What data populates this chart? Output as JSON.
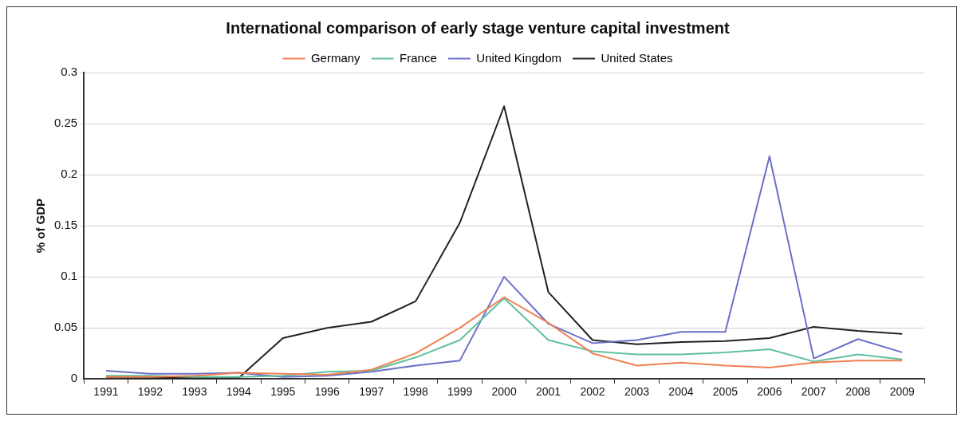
{
  "chart_data": {
    "type": "line",
    "title": "International comparison of early stage venture capital investment",
    "ylabel": "% of GDP",
    "categories": [
      "1991",
      "1992",
      "1993",
      "1994",
      "1995",
      "1996",
      "1997",
      "1998",
      "1999",
      "2000",
      "2001",
      "2002",
      "2003",
      "2004",
      "2005",
      "2006",
      "2007",
      "2008",
      "2009"
    ],
    "series": [
      {
        "name": "Germany",
        "color": "#f08050",
        "values": [
          0.002,
          0.002,
          0.003,
          0.006,
          0.005,
          0.004,
          0.009,
          0.025,
          0.05,
          0.08,
          0.055,
          0.025,
          0.013,
          0.016,
          0.013,
          0.011,
          0.016,
          0.018,
          0.018
        ]
      },
      {
        "name": "France",
        "color": "#60c0a0",
        "values": [
          0.003,
          0.003,
          0.002,
          0.002,
          0.003,
          0.007,
          0.008,
          0.021,
          0.038,
          0.079,
          0.038,
          0.027,
          0.024,
          0.024,
          0.026,
          0.029,
          0.017,
          0.024,
          0.019
        ]
      },
      {
        "name": "United Kingdom",
        "color": "#6a70c8",
        "values": [
          0.008,
          0.005,
          0.005,
          0.006,
          0.002,
          0.003,
          0.007,
          0.013,
          0.018,
          0.1,
          0.054,
          0.035,
          0.038,
          0.046,
          0.046,
          0.218,
          0.02,
          0.039,
          0.026
        ]
      },
      {
        "name": "United States",
        "color": "#222222",
        "values": [
          0.002,
          0.001,
          0.001,
          0.001,
          0.04,
          0.05,
          0.056,
          0.076,
          0.153,
          0.267,
          0.085,
          0.038,
          0.034,
          0.036,
          0.037,
          0.04,
          0.051,
          0.047,
          0.044
        ]
      }
    ],
    "ylim": [
      0,
      0.3
    ],
    "yticks": [
      0,
      0.05,
      0.1,
      0.15,
      0.2,
      0.25,
      0.3
    ],
    "grid": "y",
    "legend": "top",
    "marker": "none",
    "line_style": "solid"
  }
}
